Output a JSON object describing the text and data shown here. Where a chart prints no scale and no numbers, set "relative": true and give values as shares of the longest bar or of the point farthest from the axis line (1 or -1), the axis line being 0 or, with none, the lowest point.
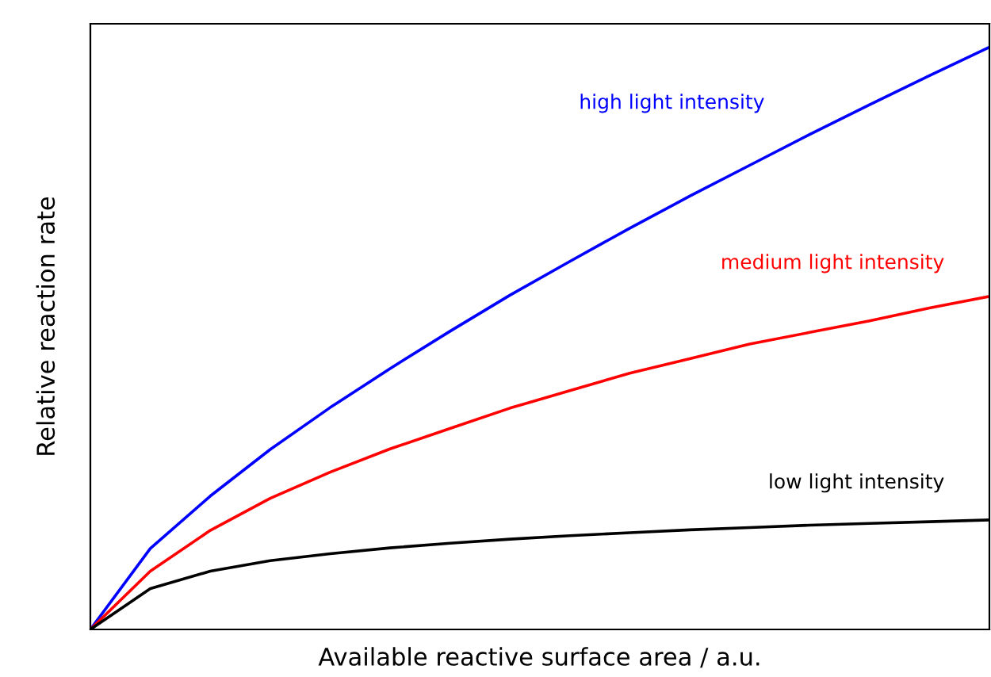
{
  "chart_data": {
    "type": "line",
    "relative": true,
    "xlabel": "Available reactive surface area / a.u.",
    "ylabel": "Relative reaction rate",
    "legend": false,
    "marker": "none",
    "line_style": "solid",
    "categories": [
      null,
      null,
      null,
      null,
      null,
      null,
      null,
      null,
      null,
      null,
      null,
      null,
      null,
      null,
      null,
      null
    ],
    "series": [
      {
        "name": "high light intensity",
        "color": "#0000ff",
        "values": [
          0,
          0.139,
          0.229,
          0.309,
          0.381,
          0.448,
          0.512,
          0.574,
          0.632,
          0.689,
          0.744,
          0.797,
          0.85,
          0.901,
          0.951,
          1
        ]
      },
      {
        "name": "medium light intensity",
        "color": "#ff0000",
        "values": [
          0,
          0.1,
          0.17,
          0.225,
          0.27,
          0.31,
          0.345,
          0.38,
          0.41,
          0.44,
          0.465,
          0.49,
          0.51,
          0.53,
          0.552,
          0.572
        ]
      },
      {
        "name": "low light intensity",
        "color": "#000000",
        "values": [
          0,
          0.07,
          0.1,
          0.118,
          0.13,
          0.14,
          0.148,
          0.155,
          0.161,
          0.166,
          0.171,
          0.175,
          0.179,
          0.182,
          0.185,
          0.188
        ]
      }
    ]
  }
}
